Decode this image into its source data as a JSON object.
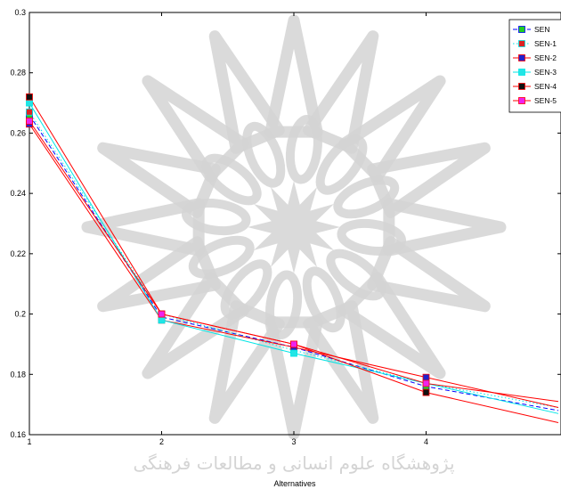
{
  "chart_data": {
    "type": "line",
    "title": "",
    "xlabel": "Alternatives",
    "ylabel": "",
    "x": [
      1,
      2,
      3,
      4,
      5
    ],
    "xlim": [
      1,
      5
    ],
    "ylim": [
      0.16,
      0.3
    ],
    "xticks": [
      "1",
      "2",
      "3",
      "4"
    ],
    "yticks": [
      "0.16",
      "0.18",
      "0.2",
      "0.22",
      "0.24",
      "0.26",
      "0.28",
      "0.3"
    ],
    "grid": false,
    "legend_position": "top-right",
    "series": [
      {
        "name": "SEN",
        "values": [
          0.266,
          0.199,
          0.189,
          0.176,
          0.168
        ],
        "color": "#0000ff",
        "marker_color": "#22cc22",
        "line_style": "dashed"
      },
      {
        "name": "SEN-1",
        "values": [
          0.267,
          0.2,
          0.188,
          0.177,
          0.169
        ],
        "color": "#00e5e5",
        "marker_color": "#dd2222",
        "line_style": "dotted"
      },
      {
        "name": "SEN-2",
        "values": [
          0.263,
          0.198,
          0.189,
          0.179,
          0.169
        ],
        "color": "#ff0000",
        "marker_color": "#2222cc",
        "line_style": "solid"
      },
      {
        "name": "SEN-3",
        "values": [
          0.27,
          0.198,
          0.187,
          0.177,
          0.167
        ],
        "color": "#00e5e5",
        "marker_color": "#22e5e5",
        "line_style": "solid"
      },
      {
        "name": "SEN-4",
        "values": [
          0.272,
          0.2,
          0.19,
          0.174,
          0.164
        ],
        "color": "#ff0000",
        "marker_color": "#111111",
        "line_style": "solid"
      },
      {
        "name": "SEN-5",
        "values": [
          0.264,
          0.2,
          0.19,
          0.177,
          0.171
        ],
        "color": "#ff0000",
        "marker_color": "#ee22ee",
        "line_style": "solid"
      }
    ]
  },
  "watermark": {
    "text": "پژوهشگاه علوم انسانی و مطالعات فرهنگی",
    "color": "#d4d4d4"
  }
}
